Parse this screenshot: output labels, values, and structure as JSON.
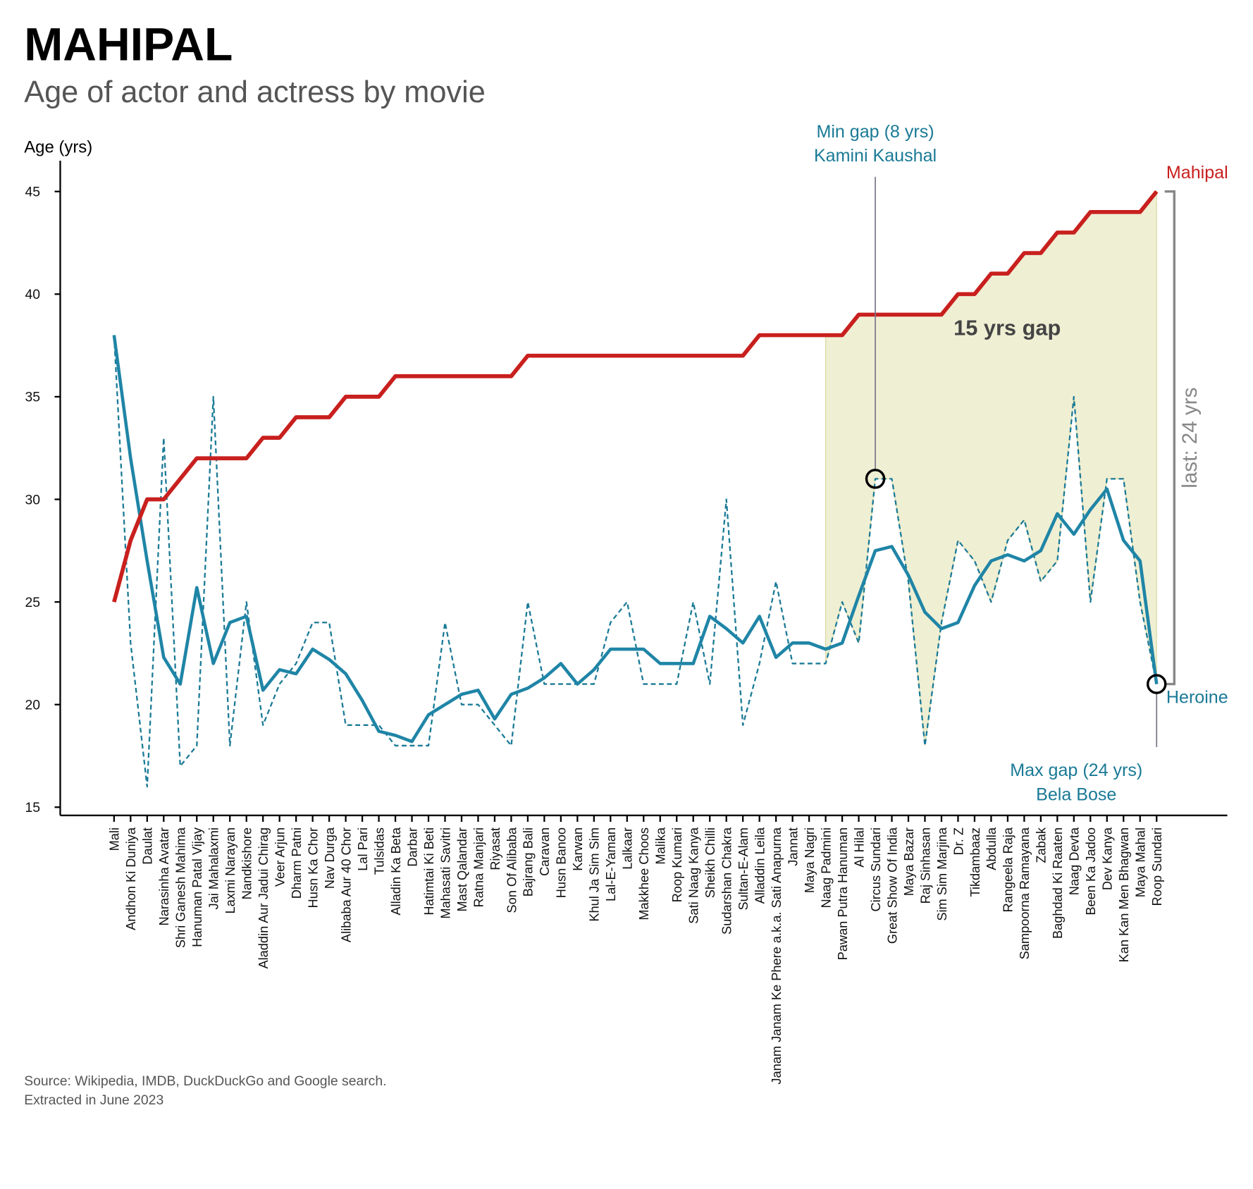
{
  "chart_data": {
    "type": "line",
    "title": "MAHIPAL",
    "subtitle": "Age of actor and actress by movie",
    "ylabel": "Age (yrs)",
    "source": [
      "Source: Wikipedia, IMDB, DuckDuckGo and Google search.",
      "Extracted in June 2023"
    ],
    "categories": [
      "Mali",
      "Andhon Ki Duniya",
      "Daulat",
      "Narasinha Avatar",
      "Shri Ganesh Mahima",
      "Hanuman Patal Vijay",
      "Jai Mahalaxmi",
      "Laxmi Narayan",
      "Nandkishore",
      "Aladdin Aur Jadui Chirag",
      "Veer Arjun",
      "Dharm Patni",
      "Husn Ka Chor",
      "Nav Durga",
      "Alibaba Aur 40 Chor",
      "Lal Pari",
      "Tulsidas",
      "Alladin Ka Beta",
      "Darbar",
      "Hatimtai Ki Beti",
      "Mahasati Savitri",
      "Mast Qalandar",
      "Ratna Manjari",
      "Riyasat",
      "Son Of Alibaba",
      "Bajrang Bali",
      "Caravan",
      "Husn Banoo",
      "Karwan",
      "Khul Ja Sim Sim",
      "Lal-E-Yaman",
      "Lalkaar",
      "Makkhee Choos",
      "Malika",
      "Roop Kumari",
      "Sati Naag Kanya",
      "Sheikh Chilli",
      "Sudarshan Chakra",
      "Sultan-E-Alam",
      "Alladdin Leila",
      "Janam Janam Ke Phere a.k.a. Sati Anapurna",
      "Jannat",
      "Maya Nagri",
      "Naag Padmini",
      "Pawan Putra Hanuman",
      "Al Hilal",
      "Circus Sundari",
      "Great Show Of India",
      "Maya Bazar",
      "Raj Sinhasan",
      "Sim Sim Marjina",
      "Dr. Z",
      "Tikdambaaz",
      "Abdulla",
      "Rangeela Raja",
      "Sampoorna Ramayana",
      "Zabak",
      "Baghdad Ki Raaten",
      "Naag Devta",
      "Been Ka Jadoo",
      "Dev Kanya",
      "Kan Kan Men Bhagwan",
      "Maya Mahal",
      "Roop Sundari"
    ],
    "series": [
      {
        "name": "Mahipal",
        "color": "#c8201e",
        "width": 5,
        "values": [
          25,
          28,
          30,
          30,
          31,
          32,
          32,
          32,
          32,
          33,
          33,
          34,
          34,
          34,
          35,
          35,
          35,
          36,
          36,
          36,
          36,
          36,
          36,
          36,
          36,
          37,
          37,
          37,
          37,
          37,
          37,
          37,
          37,
          37,
          37,
          37,
          37,
          37,
          37,
          38,
          38,
          38,
          38,
          38,
          38,
          39,
          39,
          39,
          39,
          39,
          39,
          40,
          40,
          41,
          41,
          42,
          42,
          43,
          43,
          44,
          44,
          44,
          44,
          45
        ]
      },
      {
        "name": "Heroine",
        "color": "#1a7a96",
        "width": 2,
        "dash": true,
        "values": [
          38,
          23,
          16,
          33,
          17,
          18,
          35,
          18,
          25,
          19,
          21,
          22,
          24,
          24,
          19,
          19,
          19,
          18,
          18,
          18,
          24,
          20,
          20,
          19,
          18,
          25,
          21,
          21,
          21,
          21,
          24,
          25,
          21,
          21,
          21,
          25,
          21,
          30,
          19,
          22,
          26,
          22,
          22,
          22,
          25,
          23,
          31,
          31,
          26,
          18,
          24,
          28,
          27,
          25,
          28,
          29,
          26,
          27,
          35,
          25,
          31,
          31,
          25,
          21
        ]
      },
      {
        "color": "#1f85a6",
        "width": 4,
        "values": [
          38,
          32,
          27,
          22.3,
          21,
          25.7,
          22,
          24,
          24.3,
          20.7,
          21.7,
          21.5,
          22.7,
          22.2,
          21.5,
          20.2,
          18.7,
          18.5,
          18.2,
          19.5,
          20,
          20.5,
          20.7,
          19.3,
          20.5,
          20.8,
          21.3,
          22,
          21,
          21.7,
          22.7,
          22.7,
          22.7,
          22,
          22,
          22,
          24.3,
          23.7,
          23,
          24.3,
          22.3,
          23,
          23,
          22.7,
          23,
          25.3,
          27.5,
          27.7,
          26.3,
          24.5,
          23.7,
          24,
          25.8,
          27,
          27.3,
          27,
          27.5,
          29.3,
          28.3,
          29.5,
          30.5,
          28,
          27,
          21
        ]
      }
    ],
    "ylim": [
      14.6,
      46.5
    ],
    "yticks": [
      15,
      20,
      25,
      30,
      35,
      40,
      45
    ],
    "gap_shade": {
      "text": "15 yrs gap",
      "from": 43,
      "to": 63,
      "color": "#e6e6bd"
    },
    "annotations": [
      {
        "lines": [
          "Min gap (8 yrs)",
          "Kamini Kaushal"
        ],
        "index": 46,
        "position": "top"
      },
      {
        "lines": [
          "Max gap (24 yrs)",
          "Bela Bose"
        ],
        "index": 63,
        "position": "bottom"
      }
    ],
    "last_gap": "last: 24 yrs"
  }
}
